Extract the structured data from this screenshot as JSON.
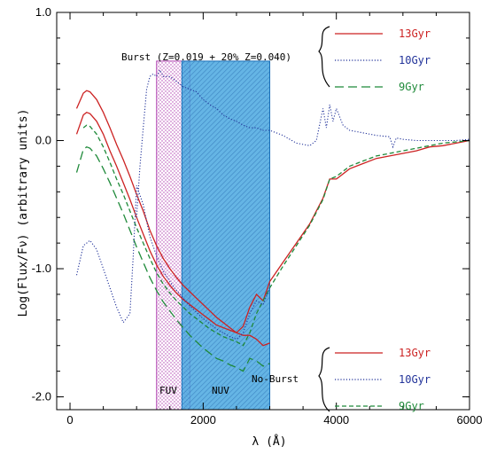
{
  "chart_data": {
    "type": "line",
    "xlabel": "λ (Å)",
    "ylabel": "Log(Flux/Fν) (arbitrary units)",
    "xlim": [
      -200,
      6000
    ],
    "ylim": [
      -2.1,
      1.0
    ],
    "xticks": [
      0,
      2000,
      4000,
      6000
    ],
    "yticks": [
      1.0,
      0.0,
      -1.0,
      -2.0
    ],
    "ytick_labels": [
      "1.0",
      "0.0",
      "-1.0",
      "-2.0"
    ],
    "grid": false,
    "colors": {
      "red": "#cc2222",
      "blue": "#22339a",
      "green": "#1f8a3a",
      "magenta": "#b040b0",
      "cyan_fill": "#4aa8e0",
      "cyan_edge": "#1a6fb8"
    },
    "bands": [
      {
        "name": "FUV",
        "label": "FUV",
        "x0": 1300,
        "x1": 1800,
        "label_x": 1520,
        "label_y": -1.85
      },
      {
        "name": "NUV",
        "label": "NUV",
        "x0": 1680,
        "x1": 3000,
        "label_x": 2240,
        "label_y": -1.85
      }
    ],
    "annotations": {
      "burst_title": "Burst (Z=0.019 + 20% Z=0.040)",
      "noburst_title": "No-Burst"
    },
    "legend_burst": [
      {
        "label": "13Gyr",
        "color": "#cc2222",
        "style": "solid"
      },
      {
        "label": "10Gyr",
        "color": "#22339a",
        "style": "dotted"
      },
      {
        "label": "9Gyr",
        "color": "#1f8a3a",
        "style": "longdash"
      }
    ],
    "legend_noburst": [
      {
        "label": "13Gyr",
        "color": "#cc2222",
        "style": "solid"
      },
      {
        "label": "10Gyr",
        "color": "#22339a",
        "style": "dotted"
      },
      {
        "label": "9Gyr",
        "color": "#1f8a3a",
        "style": "dash"
      }
    ],
    "series": [
      {
        "name": "burst-13Gyr",
        "color": "#cc2222",
        "style": "solid",
        "x": [
          100,
          200,
          250,
          300,
          400,
          500,
          600,
          700,
          800,
          900,
          1000,
          1100,
          1200,
          1300,
          1400,
          1500,
          1600,
          1700,
          1800,
          1900,
          2000,
          2100,
          2200,
          2300,
          2400,
          2500,
          2600,
          2700,
          2800,
          2900,
          3000
        ],
        "y": [
          0.25,
          0.37,
          0.39,
          0.38,
          0.32,
          0.22,
          0.1,
          -0.03,
          -0.15,
          -0.28,
          -0.42,
          -0.55,
          -0.7,
          -0.82,
          -0.92,
          -1.0,
          -1.07,
          -1.13,
          -1.18,
          -1.23,
          -1.28,
          -1.33,
          -1.38,
          -1.42,
          -1.46,
          -1.5,
          -1.52,
          -1.52,
          -1.55,
          -1.6,
          -1.58
        ]
      },
      {
        "name": "burst-9Gyr",
        "color": "#1f8a3a",
        "style": "longdash",
        "x": [
          100,
          200,
          250,
          300,
          400,
          500,
          600,
          700,
          800,
          900,
          1000,
          1100,
          1200,
          1300,
          1400,
          1500,
          1600,
          1700,
          1800,
          1900,
          2000,
          2100,
          2200,
          2300,
          2400,
          2500,
          2600,
          2700,
          2800,
          2900,
          3000
        ],
        "y": [
          -0.25,
          -0.07,
          -0.05,
          -0.06,
          -0.12,
          -0.22,
          -0.33,
          -0.45,
          -0.57,
          -0.7,
          -0.83,
          -0.95,
          -1.07,
          -1.17,
          -1.26,
          -1.33,
          -1.4,
          -1.46,
          -1.52,
          -1.57,
          -1.62,
          -1.66,
          -1.7,
          -1.72,
          -1.75,
          -1.77,
          -1.8,
          -1.7,
          -1.72,
          -1.76,
          -1.74
        ]
      },
      {
        "name": "noburst-13Gyr",
        "color": "#cc2222",
        "style": "solid",
        "x": [
          100,
          200,
          250,
          300,
          400,
          500,
          600,
          700,
          800,
          900,
          1000,
          1100,
          1200,
          1300,
          1400,
          1500,
          1600,
          1700,
          1800,
          1900,
          2000,
          2100,
          2200,
          2300,
          2400,
          2500,
          2600,
          2700,
          2800,
          2900,
          3000,
          3200,
          3400,
          3600,
          3800,
          3900,
          4000,
          4200,
          4400,
          4600,
          4800,
          5000,
          5200,
          5400,
          5600,
          5800,
          6000
        ],
        "y": [
          0.05,
          0.2,
          0.22,
          0.21,
          0.15,
          0.05,
          -0.08,
          -0.2,
          -0.33,
          -0.46,
          -0.6,
          -0.73,
          -0.86,
          -0.97,
          -1.06,
          -1.13,
          -1.19,
          -1.24,
          -1.28,
          -1.32,
          -1.36,
          -1.4,
          -1.44,
          -1.46,
          -1.48,
          -1.5,
          -1.45,
          -1.3,
          -1.2,
          -1.25,
          -1.1,
          -0.95,
          -0.8,
          -0.65,
          -0.45,
          -0.3,
          -0.3,
          -0.22,
          -0.18,
          -0.14,
          -0.12,
          -0.1,
          -0.08,
          -0.05,
          -0.04,
          -0.02,
          0.0
        ]
      },
      {
        "name": "noburst-9Gyr",
        "color": "#1f8a3a",
        "style": "dash",
        "x": [
          200,
          250,
          300,
          400,
          500,
          600,
          700,
          800,
          900,
          1000,
          1100,
          1200,
          1300,
          1400,
          1500,
          1600,
          1700,
          1800,
          1900,
          2000,
          2100,
          2200,
          2300,
          2400,
          2500,
          2600,
          2700,
          2800,
          2900,
          3000,
          3200,
          3400,
          3600,
          3800,
          3900,
          4000,
          4200,
          4400,
          4600,
          4800,
          5000,
          5200,
          5400,
          5600,
          5800,
          6000
        ],
        "y": [
          0.1,
          0.12,
          0.11,
          0.05,
          -0.05,
          -0.17,
          -0.3,
          -0.42,
          -0.55,
          -0.68,
          -0.8,
          -0.92,
          -1.03,
          -1.12,
          -1.19,
          -1.25,
          -1.3,
          -1.35,
          -1.39,
          -1.43,
          -1.47,
          -1.5,
          -1.53,
          -1.55,
          -1.57,
          -1.6,
          -1.5,
          -1.35,
          -1.25,
          -1.15,
          -0.98,
          -0.82,
          -0.66,
          -0.46,
          -0.3,
          -0.28,
          -0.2,
          -0.16,
          -0.12,
          -0.1,
          -0.08,
          -0.06,
          -0.04,
          -0.02,
          -0.01,
          0.0
        ]
      },
      {
        "name": "noburst-10Gyr",
        "color": "#22339a",
        "style": "dotted",
        "x": [
          100,
          200,
          300,
          400,
          500,
          600,
          700,
          800,
          900,
          950,
          1000,
          1100,
          1200,
          1300,
          1400,
          1500,
          1600,
          1700,
          1800,
          1900,
          2000,
          2100,
          2200,
          2300,
          2400,
          2500,
          2600,
          2700,
          2800,
          2900,
          3000
        ],
        "y": [
          -1.05,
          -0.82,
          -0.78,
          -0.85,
          -1.0,
          -1.15,
          -1.3,
          -1.42,
          -1.35,
          -0.9,
          -0.35,
          -0.5,
          -0.75,
          -0.9,
          -1.02,
          -1.1,
          -1.17,
          -1.23,
          -1.29,
          -1.34,
          -1.39,
          -1.43,
          -1.47,
          -1.5,
          -1.53,
          -1.55,
          -1.5,
          -1.35,
          -1.25,
          -1.28,
          -1.15
        ]
      },
      {
        "name": "burst-10Gyr",
        "color": "#22339a",
        "style": "dotted",
        "x": [
          1000,
          1050,
          1100,
          1150,
          1200,
          1250,
          1300,
          1350,
          1400,
          1500,
          1600,
          1700,
          1800,
          1900,
          2000,
          2100,
          2200,
          2300,
          2400,
          2500,
          2600,
          2700,
          2800,
          2900,
          3000,
          3200,
          3400,
          3600,
          3700,
          3800,
          3850,
          3900,
          3950,
          4000,
          4100,
          4200,
          4400,
          4600,
          4800,
          4850,
          4900,
          5000,
          5200,
          5400,
          5600,
          5800,
          6000
        ],
        "y": [
          -0.6,
          -0.2,
          0.1,
          0.4,
          0.5,
          0.52,
          0.5,
          0.55,
          0.5,
          0.5,
          0.46,
          0.42,
          0.4,
          0.38,
          0.32,
          0.28,
          0.25,
          0.2,
          0.17,
          0.15,
          0.12,
          0.1,
          0.1,
          0.08,
          0.08,
          0.04,
          -0.02,
          -0.04,
          0.0,
          0.25,
          0.1,
          0.28,
          0.15,
          0.25,
          0.12,
          0.08,
          0.06,
          0.04,
          0.03,
          -0.05,
          0.02,
          0.01,
          0.0,
          0.0,
          0.0,
          0.0,
          0.01
        ]
      }
    ]
  }
}
